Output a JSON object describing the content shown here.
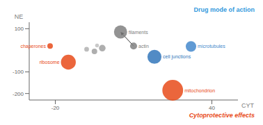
{
  "chart_data": {
    "type": "scatter",
    "xlabel": "CYT",
    "ylabel": "NE",
    "xlim": [
      -30,
      50
    ],
    "ylim": [
      -230,
      130
    ],
    "xticks": [
      -20,
      40
    ],
    "yticks": [
      -200,
      -100,
      100
    ],
    "points": [
      {
        "label": "filaments",
        "x": 5,
        "y": 85,
        "size": 1400,
        "color": "#808080"
      },
      {
        "label": "actin",
        "x": 10,
        "y": 20,
        "size": 400,
        "color": "#808080"
      },
      {
        "x": -2,
        "y": 10,
        "size": 350,
        "color": "#a0a0a0"
      },
      {
        "x": -5,
        "y": -5,
        "size": 250,
        "color": "#a0a0a0"
      },
      {
        "x": -8,
        "y": 5,
        "size": 180,
        "color": "#b0b0b0"
      },
      {
        "x": -4,
        "y": 22,
        "size": 120,
        "color": "#c0c0c0"
      },
      {
        "label": "microtubules",
        "x": 32,
        "y": 18,
        "size": 900,
        "color": "#4488cc"
      },
      {
        "label": "cell junctions",
        "x": 18,
        "y": -30,
        "size": 1600,
        "color": "#3377bb"
      },
      {
        "label": "chaperones",
        "x": -22,
        "y": 20,
        "size": 250,
        "color": "#e84b1a"
      },
      {
        "label": "ribosome",
        "x": -15,
        "y": -55,
        "size": 1800,
        "color": "#e84b1a"
      },
      {
        "label": "mitochondrion",
        "x": 25,
        "y": -185,
        "size": 3500,
        "color": "#e84b1a"
      }
    ],
    "arrows": [
      {
        "from": [
          10,
          20
        ],
        "to": [
          5,
          85
        ]
      }
    ],
    "annotations": [
      {
        "text": "Drug mode of action",
        "color": "#3399dd"
      },
      {
        "text": "Cytoprotective effects",
        "color": "#e84b1a"
      }
    ]
  }
}
